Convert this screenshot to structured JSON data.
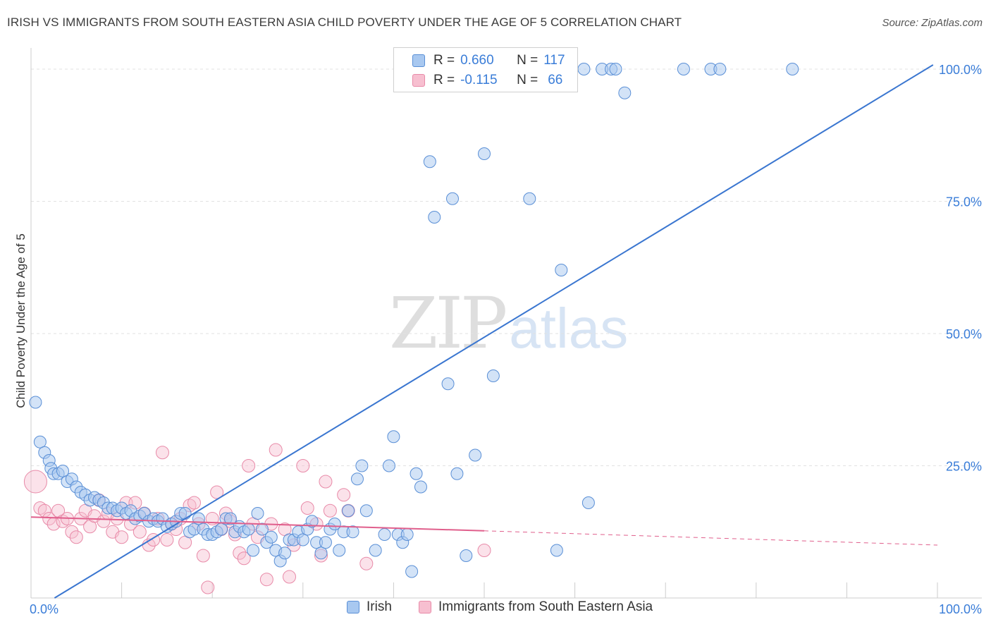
{
  "title": "IRISH VS IMMIGRANTS FROM SOUTH EASTERN ASIA CHILD POVERTY UNDER THE AGE OF 5 CORRELATION CHART",
  "source": "Source: ZipAtlas.com",
  "watermark": {
    "zip": "ZIP",
    "atlas": "atlas"
  },
  "stats": [
    {
      "r_label": "R =",
      "r_value": "0.660",
      "n_label": "N =",
      "n_value": "117"
    },
    {
      "r_label": "R =",
      "r_value": "-0.115",
      "n_label": "N =",
      "n_value": "66"
    }
  ],
  "chart_data": {
    "type": "scatter",
    "ylabel": "Child Poverty Under the Age of 5",
    "xlim": [
      0,
      100
    ],
    "ylim": [
      0,
      100
    ],
    "x_tick_labels": [
      "0.0%",
      "100.0%"
    ],
    "y_tick_labels": [
      "25.0%",
      "50.0%",
      "75.0%",
      "100.0%"
    ],
    "y_ticks": [
      25,
      50,
      75,
      100
    ],
    "grid": true,
    "legend_placement": "bottom-center",
    "colors": {
      "irish": "#a8c8f0",
      "irish_edge": "#5a8fd6",
      "irish_line": "#3a76d0",
      "sea": "#f7bfd0",
      "sea_edge": "#e88aa8",
      "sea_line": "#e05f8c",
      "tick_text": "#3a7dd8",
      "grid": "#e2e2e2"
    },
    "series": [
      {
        "name": "Irish",
        "trend": {
          "x": [
            0,
            100
          ],
          "y": [
            -2.7,
            101.3
          ]
        },
        "points": [
          [
            0.5,
            37
          ],
          [
            1,
            29.5
          ],
          [
            1.5,
            27.5
          ],
          [
            2,
            26
          ],
          [
            2.2,
            24.5
          ],
          [
            2.5,
            23.5
          ],
          [
            3,
            23.5
          ],
          [
            3.5,
            24
          ],
          [
            4,
            22
          ],
          [
            4.5,
            22.5
          ],
          [
            5,
            21
          ],
          [
            5.5,
            20
          ],
          [
            6,
            19.5
          ],
          [
            6.5,
            18.5
          ],
          [
            7,
            19
          ],
          [
            7.5,
            18.5
          ],
          [
            8,
            18
          ],
          [
            8.5,
            17
          ],
          [
            9,
            17
          ],
          [
            9.5,
            16.5
          ],
          [
            10,
            17
          ],
          [
            10.5,
            16
          ],
          [
            11,
            16.5
          ],
          [
            11.5,
            15
          ],
          [
            12,
            15.5
          ],
          [
            12.5,
            16
          ],
          [
            13,
            14.5
          ],
          [
            13.5,
            15
          ],
          [
            14,
            14.5
          ],
          [
            14.5,
            15
          ],
          [
            15,
            13.5
          ],
          [
            15.5,
            14
          ],
          [
            16,
            14.5
          ],
          [
            16.5,
            16
          ],
          [
            17,
            16
          ],
          [
            17.5,
            12.5
          ],
          [
            18,
            13
          ],
          [
            18.5,
            15
          ],
          [
            19,
            13
          ],
          [
            19.5,
            12
          ],
          [
            20,
            12
          ],
          [
            20.5,
            12.5
          ],
          [
            21,
            13
          ],
          [
            21.5,
            15
          ],
          [
            22,
            15
          ],
          [
            22.5,
            12.5
          ],
          [
            23,
            13.5
          ],
          [
            23.5,
            12.5
          ],
          [
            24,
            13
          ],
          [
            24.5,
            9
          ],
          [
            25,
            16
          ],
          [
            25.5,
            13
          ],
          [
            26,
            10.5
          ],
          [
            26.5,
            11.5
          ],
          [
            27,
            9
          ],
          [
            27.5,
            7
          ],
          [
            28,
            8.5
          ],
          [
            28.5,
            11
          ],
          [
            29,
            11
          ],
          [
            29.5,
            12.5
          ],
          [
            30,
            11
          ],
          [
            30.5,
            13
          ],
          [
            31,
            14.5
          ],
          [
            31.5,
            10.5
          ],
          [
            32,
            8.5
          ],
          [
            32.5,
            10.5
          ],
          [
            33,
            13
          ],
          [
            33.5,
            14
          ],
          [
            34,
            9
          ],
          [
            34.5,
            12.5
          ],
          [
            35,
            16.5
          ],
          [
            35.5,
            12.5
          ],
          [
            36,
            22.5
          ],
          [
            36.5,
            25
          ],
          [
            37,
            16.5
          ],
          [
            38,
            9
          ],
          [
            39,
            12
          ],
          [
            39.5,
            25
          ],
          [
            40,
            30.5
          ],
          [
            40.5,
            12
          ],
          [
            41,
            10.5
          ],
          [
            41.5,
            12
          ],
          [
            42,
            5
          ],
          [
            42.5,
            23.5
          ],
          [
            43,
            21
          ],
          [
            44,
            82.5
          ],
          [
            44.5,
            72
          ],
          [
            45,
            100
          ],
          [
            46,
            40.5
          ],
          [
            46.5,
            75.5
          ],
          [
            47,
            23.5
          ],
          [
            48,
            8
          ],
          [
            49,
            27
          ],
          [
            50,
            84
          ],
          [
            51,
            42
          ],
          [
            54,
            100
          ],
          [
            55,
            75.5
          ],
          [
            58,
            9
          ],
          [
            58.5,
            62
          ],
          [
            61,
            100
          ],
          [
            61.5,
            18
          ],
          [
            63,
            100
          ],
          [
            64,
            100
          ],
          [
            64.5,
            100
          ],
          [
            65.5,
            95.5
          ],
          [
            72,
            100
          ],
          [
            75,
            100
          ],
          [
            76,
            100
          ],
          [
            84,
            100
          ],
          [
            43,
            100
          ]
        ]
      },
      {
        "name": "Immigrants from South Eastern Asia",
        "trend": {
          "x": [
            0,
            50
          ],
          "y": [
            15.3,
            12.7
          ]
        },
        "trend_dashed": {
          "x": [
            50,
            100
          ],
          "y": [
            12.7,
            10.0
          ]
        },
        "points": [
          [
            0.5,
            22
          ],
          [
            1,
            17
          ],
          [
            1.5,
            16.5
          ],
          [
            2,
            15
          ],
          [
            2.5,
            14
          ],
          [
            3,
            16.5
          ],
          [
            3.5,
            14.5
          ],
          [
            4,
            15
          ],
          [
            4.5,
            12.5
          ],
          [
            5,
            11.5
          ],
          [
            5.5,
            15
          ],
          [
            6,
            16.5
          ],
          [
            6.5,
            13.5
          ],
          [
            7,
            15.5
          ],
          [
            7.5,
            18.5
          ],
          [
            8,
            14.5
          ],
          [
            8.5,
            16
          ],
          [
            9,
            12.5
          ],
          [
            9.5,
            15
          ],
          [
            10,
            11.5
          ],
          [
            10.5,
            18
          ],
          [
            11,
            14
          ],
          [
            11.5,
            18
          ],
          [
            12,
            12.5
          ],
          [
            12.5,
            16
          ],
          [
            13,
            10
          ],
          [
            13.5,
            11
          ],
          [
            14,
            15
          ],
          [
            14.5,
            27.5
          ],
          [
            15,
            11
          ],
          [
            15.5,
            14
          ],
          [
            16,
            13
          ],
          [
            16.5,
            15
          ],
          [
            17,
            10.5
          ],
          [
            17.5,
            17.5
          ],
          [
            18,
            18
          ],
          [
            18.5,
            14
          ],
          [
            19,
            8
          ],
          [
            19.5,
            2
          ],
          [
            20,
            15
          ],
          [
            20.5,
            20
          ],
          [
            21,
            13
          ],
          [
            21.5,
            16
          ],
          [
            22,
            14.5
          ],
          [
            22.5,
            12
          ],
          [
            23,
            8.5
          ],
          [
            23.5,
            7.5
          ],
          [
            24,
            25
          ],
          [
            24.5,
            14
          ],
          [
            25,
            11.5
          ],
          [
            26,
            3.5
          ],
          [
            26.5,
            14
          ],
          [
            27,
            28
          ],
          [
            28,
            13
          ],
          [
            28.5,
            4
          ],
          [
            29,
            10
          ],
          [
            30,
            25
          ],
          [
            30.5,
            17
          ],
          [
            31.5,
            14
          ],
          [
            32,
            8
          ],
          [
            32.5,
            22
          ],
          [
            33,
            16.5
          ],
          [
            34.5,
            19.5
          ],
          [
            35,
            16.5
          ],
          [
            37,
            6.5
          ],
          [
            50,
            9
          ]
        ]
      }
    ]
  },
  "legend": [
    {
      "label": "Irish"
    },
    {
      "label": "Immigrants from South Eastern Asia"
    }
  ]
}
